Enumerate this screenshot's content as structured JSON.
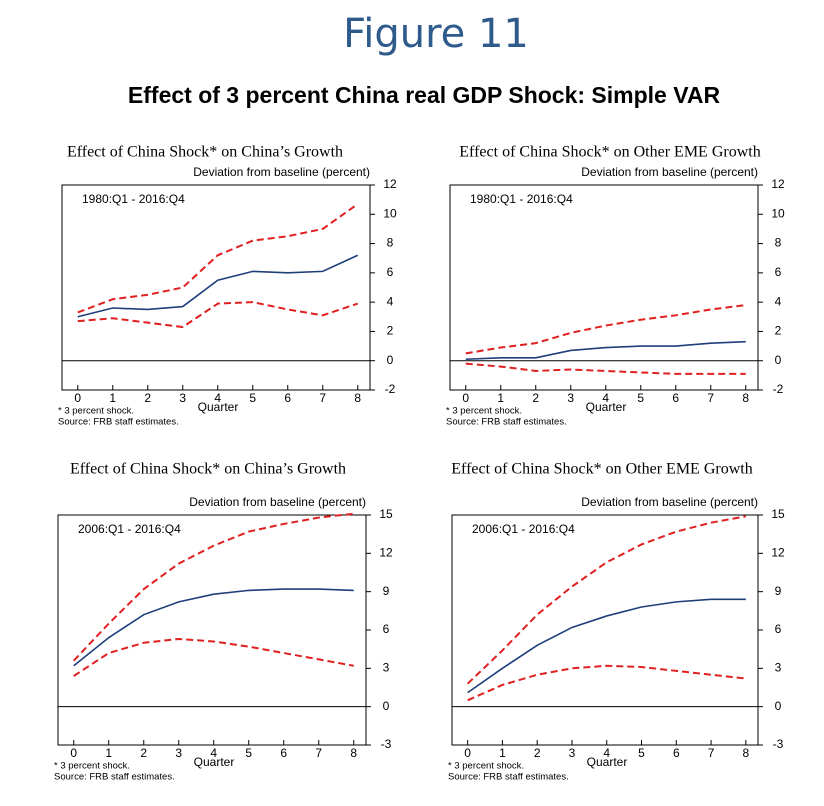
{
  "header": {
    "figure": "Figure 11",
    "title": "Effect of 3 percent China real GDP Shock: Simple VAR"
  },
  "chart_data": [
    {
      "type": "line",
      "title": "Effect of China Shock* on China’s Growth",
      "ylabel": "Deviation from baseline (percent)",
      "annotation": "1980:Q1 - 2016:Q4",
      "xlabel": "Quarter",
      "notes": [
        "* 3 percent shock.",
        "Source: FRB staff estimates."
      ],
      "x": [
        0,
        1,
        2,
        3,
        4,
        5,
        6,
        7,
        8
      ],
      "xlim": [
        -0.45,
        8.35
      ],
      "xticks": [
        0,
        1,
        2,
        3,
        4,
        5,
        6,
        7,
        8
      ],
      "ylim": [
        -2,
        12
      ],
      "yticks": [
        -2,
        0,
        2,
        4,
        6,
        8,
        10,
        12
      ],
      "series": [
        {
          "color": "#1f3f7a",
          "dash": false,
          "values": [
            3.0,
            3.6,
            3.5,
            3.7,
            5.5,
            6.1,
            6.0,
            6.1,
            7.2
          ]
        },
        {
          "color": "#e02020",
          "dash": true,
          "values": [
            3.3,
            4.2,
            4.5,
            5.0,
            7.2,
            8.2,
            8.5,
            9.0,
            10.7
          ]
        },
        {
          "color": "#e02020",
          "dash": true,
          "values": [
            2.7,
            2.9,
            2.6,
            2.3,
            3.9,
            4.0,
            3.5,
            3.1,
            3.9
          ]
        }
      ]
    },
    {
      "type": "line",
      "title": "Effect of China Shock* on Other EME Growth",
      "ylabel": "Deviation from baseline (percent)",
      "annotation": "1980:Q1 - 2016:Q4",
      "xlabel": "Quarter",
      "notes": [
        "* 3 percent shock.",
        "Source: FRB staff estimates."
      ],
      "x": [
        0,
        1,
        2,
        3,
        4,
        5,
        6,
        7,
        8
      ],
      "xlim": [
        -0.45,
        8.35
      ],
      "xticks": [
        0,
        1,
        2,
        3,
        4,
        5,
        6,
        7,
        8
      ],
      "ylim": [
        -2,
        12
      ],
      "yticks": [
        -2,
        0,
        2,
        4,
        6,
        8,
        10,
        12
      ],
      "series": [
        {
          "color": "#1f3f7a",
          "dash": false,
          "values": [
            0.1,
            0.2,
            0.2,
            0.7,
            0.9,
            1.0,
            1.0,
            1.2,
            1.3
          ]
        },
        {
          "color": "#e02020",
          "dash": true,
          "values": [
            0.5,
            0.9,
            1.2,
            1.9,
            2.4,
            2.8,
            3.1,
            3.5,
            3.8
          ]
        },
        {
          "color": "#e02020",
          "dash": true,
          "values": [
            -0.2,
            -0.4,
            -0.7,
            -0.6,
            -0.7,
            -0.8,
            -0.9,
            -0.9,
            -0.9
          ]
        }
      ]
    },
    {
      "type": "line",
      "title": "Effect of China Shock* on China’s Growth",
      "ylabel": "Deviation from baseline (percent)",
      "annotation": "2006:Q1 - 2016:Q4",
      "xlabel": "Quarter",
      "notes": [
        "* 3 percent shock.",
        "Source: FRB staff estimates."
      ],
      "x": [
        0,
        1,
        2,
        3,
        4,
        5,
        6,
        7,
        8
      ],
      "xlim": [
        -0.45,
        8.35
      ],
      "xticks": [
        0,
        1,
        2,
        3,
        4,
        5,
        6,
        7,
        8
      ],
      "ylim": [
        -3,
        15
      ],
      "yticks": [
        -3,
        0,
        3,
        6,
        9,
        12,
        15
      ],
      "series": [
        {
          "color": "#1f3f7a",
          "dash": false,
          "values": [
            3.2,
            5.4,
            7.2,
            8.2,
            8.8,
            9.1,
            9.2,
            9.2,
            9.1
          ]
        },
        {
          "color": "#e02020",
          "dash": true,
          "values": [
            3.6,
            6.5,
            9.2,
            11.2,
            12.6,
            13.7,
            14.3,
            14.8,
            15.1
          ]
        },
        {
          "color": "#e02020",
          "dash": true,
          "values": [
            2.4,
            4.2,
            5.0,
            5.3,
            5.1,
            4.7,
            4.2,
            3.7,
            3.2
          ]
        }
      ]
    },
    {
      "type": "line",
      "title": "Effect of China Shock* on Other EME Growth",
      "ylabel": "Deviation from baseline (percent)",
      "annotation": "2006:Q1 - 2016:Q4",
      "xlabel": "Quarter",
      "notes": [
        "* 3 percent shock.",
        "Source: FRB staff estimates."
      ],
      "x": [
        0,
        1,
        2,
        3,
        4,
        5,
        6,
        7,
        8
      ],
      "xlim": [
        -0.45,
        8.35
      ],
      "xticks": [
        0,
        1,
        2,
        3,
        4,
        5,
        6,
        7,
        8
      ],
      "ylim": [
        -3,
        15
      ],
      "yticks": [
        -3,
        0,
        3,
        6,
        9,
        12,
        15
      ],
      "series": [
        {
          "color": "#1f3f7a",
          "dash": false,
          "values": [
            1.1,
            3.0,
            4.8,
            6.2,
            7.1,
            7.8,
            8.2,
            8.4,
            8.4
          ]
        },
        {
          "color": "#e02020",
          "dash": true,
          "values": [
            1.8,
            4.4,
            7.2,
            9.4,
            11.3,
            12.7,
            13.7,
            14.4,
            14.9
          ]
        },
        {
          "color": "#e02020",
          "dash": true,
          "values": [
            0.5,
            1.7,
            2.5,
            3.0,
            3.2,
            3.1,
            2.8,
            2.5,
            2.2
          ]
        }
      ]
    }
  ]
}
